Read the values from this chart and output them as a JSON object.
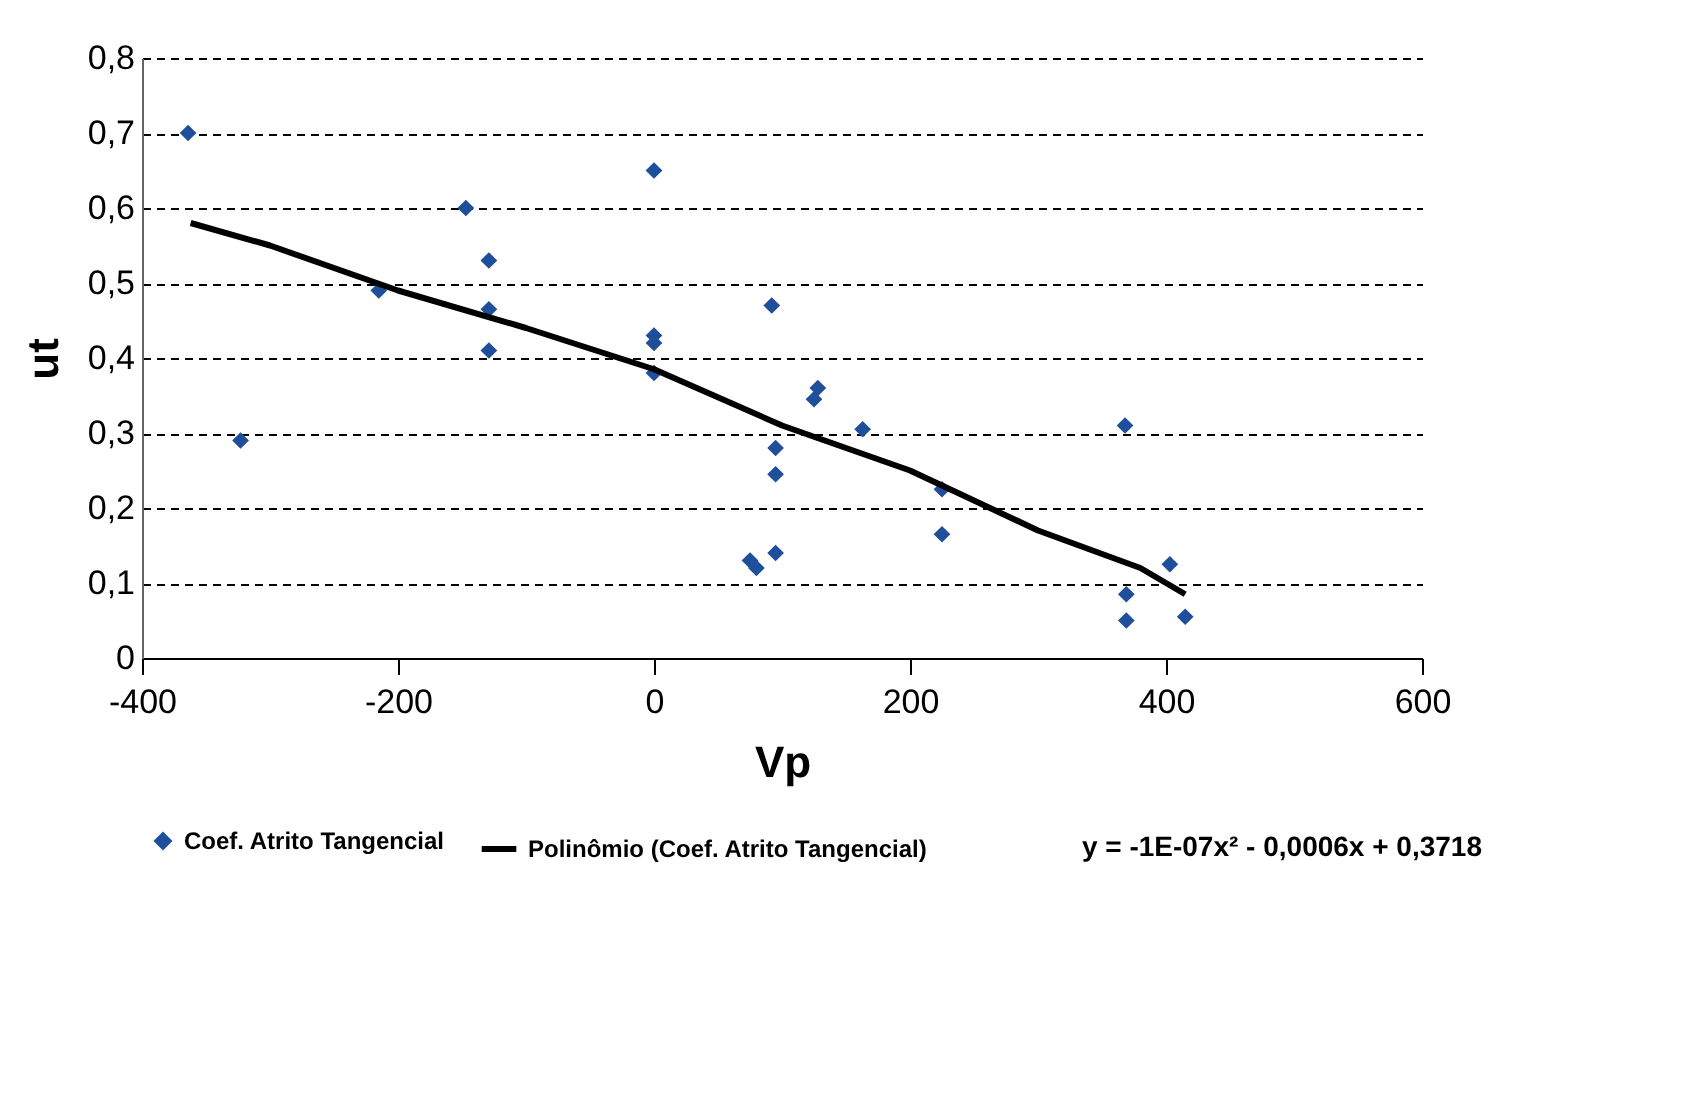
{
  "chart_data": {
    "type": "scatter",
    "xlabel": "Vp",
    "ylabel": "ut",
    "annotations": [
      "y = -1E-07x² - 0,0006x + 0,3718"
    ],
    "xlim": [
      -400,
      600
    ],
    "xticks": [
      -400,
      -200,
      0,
      200,
      400,
      600
    ],
    "ylim": [
      0,
      0.8
    ],
    "yticks": [
      {
        "value": 0,
        "label": "0"
      },
      {
        "value": 0.1,
        "label": "0,1"
      },
      {
        "value": 0.2,
        "label": "0,2"
      },
      {
        "value": 0.3,
        "label": "0,3"
      },
      {
        "value": 0.4,
        "label": "0,4"
      },
      {
        "value": 0.5,
        "label": "0,5"
      },
      {
        "value": 0.6,
        "label": "0,6"
      },
      {
        "value": 0.7,
        "label": "0,7"
      },
      {
        "value": 0.8,
        "label": "0,8"
      }
    ],
    "grid": "y",
    "legend": "bottom",
    "marker": "diamond",
    "series": [
      {
        "name": "Coef. Atrito Tangencial",
        "color": "#1f4e9a",
        "x": [
          -364,
          -323,
          -215,
          -147,
          -129,
          -129,
          -129,
          0,
          0,
          0,
          0,
          92,
          75,
          80,
          95,
          95,
          95,
          128,
          125,
          163,
          225,
          225,
          368,
          369,
          369,
          403,
          415
        ],
        "values": [
          0.7,
          0.29,
          0.49,
          0.6,
          0.53,
          0.465,
          0.41,
          0.65,
          0.43,
          0.42,
          0.38,
          0.47,
          0.13,
          0.12,
          0.14,
          0.28,
          0.245,
          0.36,
          0.345,
          0.305,
          0.225,
          0.165,
          0.31,
          0.085,
          0.05,
          0.125,
          0.055
        ]
      },
      {
        "name": "Polinômio (Coef. Atrito Tangencial)",
        "color": "#000000",
        "type": "line",
        "line_style": "solid",
        "marker": "none",
        "x": [
          -362,
          -300,
          -200,
          -100,
          0,
          100,
          200,
          300,
          380,
          415
        ],
        "values": [
          0.58,
          0.55,
          0.49,
          0.44,
          0.385,
          0.31,
          0.25,
          0.17,
          0.12,
          0.085
        ]
      }
    ]
  }
}
